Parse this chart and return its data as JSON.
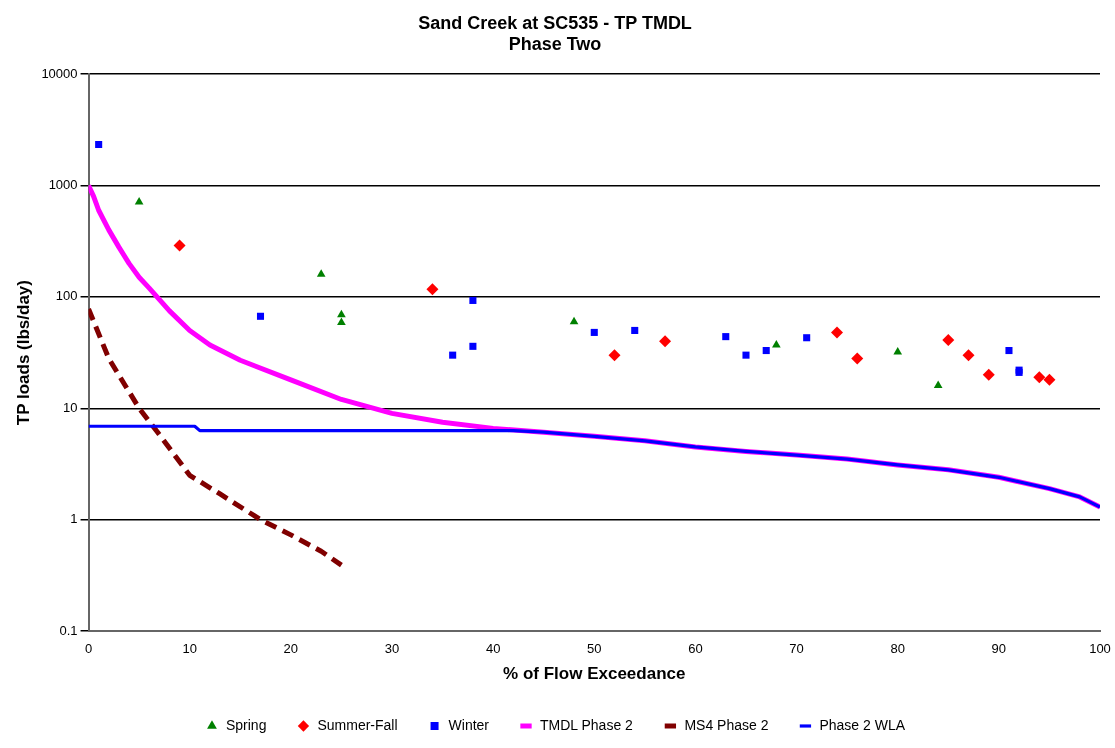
{
  "chart_data": {
    "type": "scatter",
    "title": "Sand Creek at SC535 - TP TMDL",
    "subtitle": "Phase Two",
    "xlabel": "% of Flow Exceedance",
    "ylabel": "TP loads (lbs/day)",
    "xlim": [
      0,
      100
    ],
    "xticks": [
      0,
      10,
      20,
      30,
      40,
      50,
      60,
      70,
      80,
      90,
      100
    ],
    "ylim": [
      0.1,
      10000
    ],
    "yticks": [
      0.1,
      1,
      10,
      100,
      1000,
      10000
    ],
    "log": "y",
    "grid": "y",
    "legend": "bottom",
    "series": [
      {
        "name": "Spring",
        "type": "scatter",
        "marker": "triangle",
        "color": "#008000",
        "x": [
          5,
          23,
          25,
          25,
          48,
          68,
          80,
          84
        ],
        "values": [
          710,
          160,
          69,
          59,
          60,
          37,
          32,
          16
        ]
      },
      {
        "name": "Summer-Fall",
        "type": "scatter",
        "marker": "diamond",
        "color": "#ff0000",
        "x": [
          9,
          34,
          52,
          57,
          74,
          76,
          85,
          87,
          89,
          94,
          95
        ],
        "values": [
          290,
          117,
          30,
          40,
          48,
          28,
          41,
          30,
          20,
          19,
          18
        ]
      },
      {
        "name": "Winter",
        "type": "scatter",
        "marker": "square",
        "color": "#0000ff",
        "x": [
          1,
          17,
          36,
          38,
          38,
          50,
          54,
          63,
          65,
          67,
          71,
          91,
          92,
          92
        ],
        "values": [
          2340,
          67,
          30,
          93,
          36,
          48,
          50,
          44,
          30,
          33,
          43,
          33,
          22,
          21
        ]
      },
      {
        "name": "TMDL Phase 2",
        "type": "line",
        "marker": "none",
        "line_style": "solid",
        "color": "#ff00ff",
        "x": [
          0,
          0.5,
          1,
          2,
          3,
          4,
          5,
          6,
          8,
          10,
          12,
          15,
          20,
          25,
          30,
          35,
          40,
          45,
          50,
          55,
          60,
          65,
          70,
          75,
          80,
          85,
          90,
          95,
          98,
          100
        ],
        "values": [
          1000,
          800,
          600,
          400,
          280,
          200,
          150,
          120,
          75,
          50,
          37,
          27,
          18,
          12,
          9,
          7.5,
          6.6,
          6.1,
          5.6,
          5.1,
          4.5,
          4.1,
          3.8,
          3.5,
          3.1,
          2.8,
          2.4,
          1.9,
          1.6,
          1.3
        ]
      },
      {
        "name": "MS4 Phase 2",
        "type": "line",
        "marker": "none",
        "line_style": "dashed",
        "color": "#800000",
        "x": [
          0,
          2,
          5,
          7,
          10,
          13,
          17,
          20,
          23,
          25
        ],
        "values": [
          78,
          28,
          10,
          5.8,
          2.5,
          1.7,
          1.0,
          0.73,
          0.52,
          0.39
        ]
      },
      {
        "name": "Phase 2 WLA",
        "type": "line",
        "marker": "none",
        "line_style": "solid",
        "color": "#0000ff",
        "x": [
          0,
          10.5,
          11,
          42,
          45,
          50,
          55,
          60,
          65,
          70,
          75,
          80,
          85,
          90,
          95,
          98,
          100
        ],
        "values": [
          6.9,
          6.9,
          6.3,
          6.3,
          6.1,
          5.6,
          5.1,
          4.5,
          4.1,
          3.8,
          3.5,
          3.1,
          2.8,
          2.4,
          1.9,
          1.6,
          1.3
        ]
      }
    ]
  }
}
